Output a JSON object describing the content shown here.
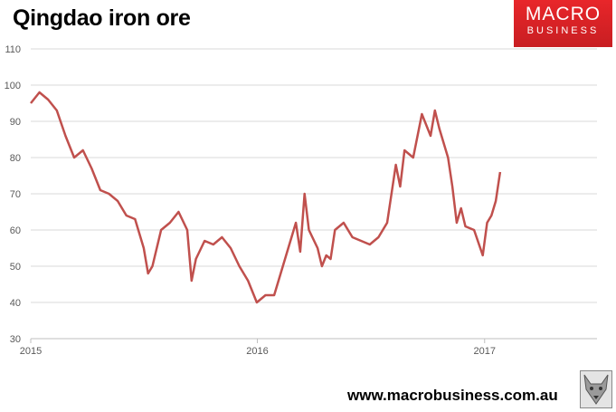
{
  "header": {
    "title": "Qingdao iron ore"
  },
  "brand": {
    "line1": "MACRO",
    "line2": "BUSINESS",
    "color": "#d8242a"
  },
  "footer": {
    "url": "www.macrobusiness.com.au"
  },
  "chart_data": {
    "type": "line",
    "title": "Qingdao iron ore",
    "xlabel": "",
    "ylabel": "",
    "ylim": [
      30,
      110
    ],
    "yticks": [
      30,
      40,
      50,
      60,
      70,
      80,
      90,
      100,
      110
    ],
    "xlim": [
      "2015-01-01",
      "2017-07-01"
    ],
    "xticks": [
      "2015",
      "2016",
      "2017"
    ],
    "grid": true,
    "legend": "none",
    "series": [
      {
        "color": "#c0504d",
        "x": [
          "2015-01-01",
          "2015-01-15",
          "2015-01-29",
          "2015-02-12",
          "2015-02-26",
          "2015-03-12",
          "2015-03-26",
          "2015-04-09",
          "2015-04-23",
          "2015-05-07",
          "2015-05-21",
          "2015-06-04",
          "2015-06-18",
          "2015-07-02",
          "2015-07-09",
          "2015-07-16",
          "2015-07-30",
          "2015-08-13",
          "2015-08-27",
          "2015-09-10",
          "2015-09-17",
          "2015-09-24",
          "2015-10-08",
          "2015-10-22",
          "2015-11-05",
          "2015-11-19",
          "2015-12-03",
          "2015-12-17",
          "2015-12-31",
          "2016-01-14",
          "2016-01-28",
          "2016-02-11",
          "2016-02-25",
          "2016-03-03",
          "2016-03-10",
          "2016-03-17",
          "2016-03-24",
          "2016-04-07",
          "2016-04-14",
          "2016-04-21",
          "2016-04-28",
          "2016-05-05",
          "2016-05-19",
          "2016-06-02",
          "2016-06-16",
          "2016-06-30",
          "2016-07-14",
          "2016-07-28",
          "2016-08-11",
          "2016-08-18",
          "2016-08-25",
          "2016-09-08",
          "2016-09-22",
          "2016-10-06",
          "2016-10-13",
          "2016-10-20",
          "2016-11-03",
          "2016-11-10",
          "2016-11-17",
          "2016-11-24",
          "2016-12-01",
          "2016-12-15",
          "2016-12-29",
          "2017-01-05",
          "2017-01-12",
          "2017-01-19",
          "2017-01-26"
        ],
        "values": [
          95,
          98,
          96,
          93,
          86,
          80,
          82,
          77,
          71,
          70,
          68,
          64,
          63,
          55,
          48,
          50,
          60,
          62,
          65,
          60,
          46,
          52,
          57,
          56,
          58,
          55,
          50,
          46,
          40,
          42,
          42,
          50,
          58,
          62,
          54,
          70,
          60,
          55,
          50,
          53,
          52,
          60,
          62,
          58,
          57,
          56,
          58,
          62,
          78,
          72,
          82,
          80,
          92,
          86,
          93,
          88,
          80,
          72,
          62,
          66,
          61,
          60,
          53,
          62,
          64,
          68,
          76
        ]
      }
    ]
  }
}
